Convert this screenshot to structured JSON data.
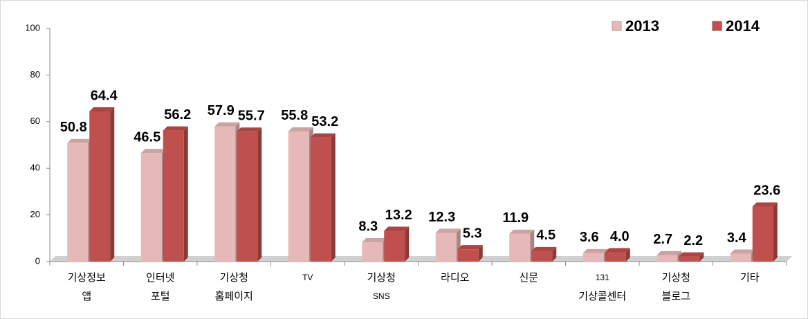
{
  "chart_data": {
    "type": "bar",
    "categories": [
      [
        "기상정보",
        "앱"
      ],
      [
        "인터넷",
        "포털"
      ],
      [
        "기상청",
        "홈페이지"
      ],
      [
        "TV"
      ],
      [
        "기상청",
        "SNS"
      ],
      [
        "라디오"
      ],
      [
        "신문"
      ],
      [
        "131",
        "기상콜센터"
      ],
      [
        "기상청",
        "블로그"
      ],
      [
        "기타"
      ]
    ],
    "series": [
      {
        "name": "2013",
        "color": "#e6b9b8",
        "values": [
          50.8,
          46.5,
          57.9,
          55.8,
          8.3,
          12.3,
          11.9,
          3.6,
          2.7,
          3.4
        ]
      },
      {
        "name": "2014",
        "color": "#c0504d",
        "values": [
          64.4,
          56.2,
          55.7,
          53.2,
          13.2,
          5.3,
          4.5,
          4.0,
          2.2,
          23.6
        ],
        "value_labels": [
          "64.4",
          "56.2",
          "55.7",
          "53.2",
          "13.2",
          "5.3",
          "4.5",
          "4.0",
          "2.2",
          "23.6"
        ]
      }
    ],
    "ylim": [
      0,
      100
    ],
    "yticks": [
      0,
      20,
      40,
      60,
      80,
      100
    ],
    "grid": false,
    "legend": "top-right"
  }
}
